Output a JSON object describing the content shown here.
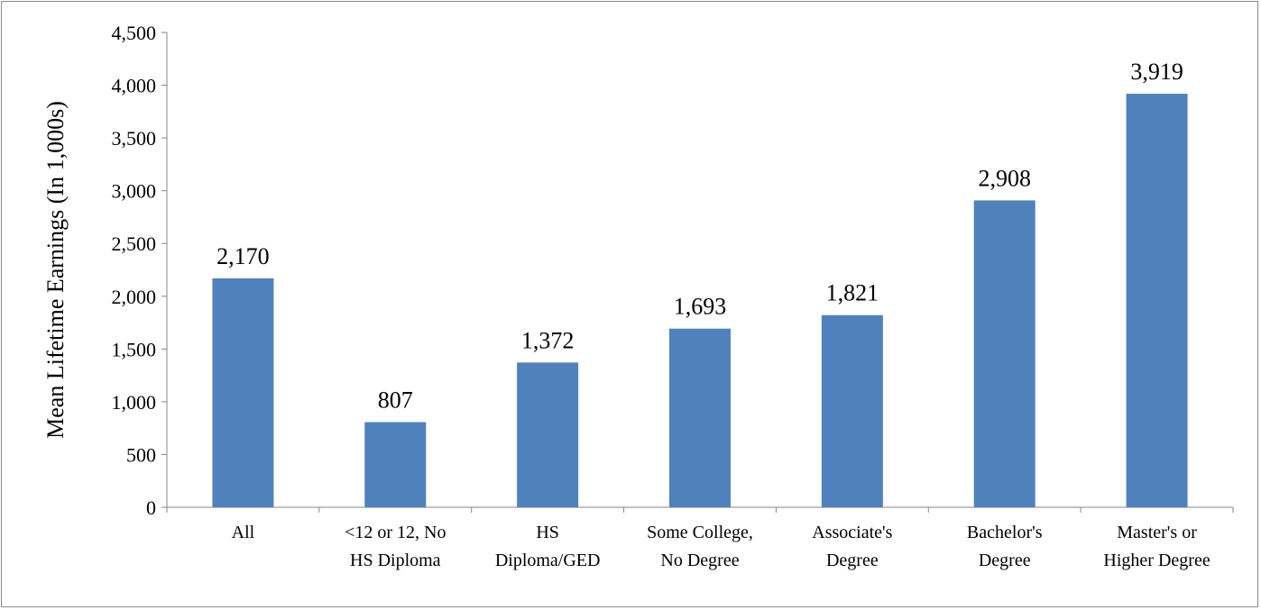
{
  "chart_data": {
    "type": "bar",
    "title": "",
    "xlabel": "",
    "ylabel": "Mean Lifetime Earnings (In 1,000s)",
    "ylim": [
      0,
      4500
    ],
    "yticks": [
      0,
      500,
      1000,
      1500,
      2000,
      2500,
      3000,
      3500,
      4000,
      4500
    ],
    "ytick_labels": [
      "0",
      "500",
      "1,000",
      "1,500",
      "2,000",
      "2,500",
      "3,000",
      "3,500",
      "4,000",
      "4,500"
    ],
    "grid": false,
    "legend": "none",
    "bar_color": "#4F81BD",
    "categories": [
      [
        "All"
      ],
      [
        "<12 or 12, No",
        "HS Diploma"
      ],
      [
        "HS",
        "Diploma/GED"
      ],
      [
        "Some College,",
        "No Degree"
      ],
      [
        "Associate's",
        "Degree"
      ],
      [
        "Bachelor's",
        "Degree"
      ],
      [
        "Master's or",
        "Higher Degree"
      ]
    ],
    "values": [
      2170,
      807,
      1372,
      1693,
      1821,
      2908,
      3919
    ],
    "value_labels": [
      "2,170",
      "807",
      "1,372",
      "1,693",
      "1,821",
      "2,908",
      "3,919"
    ]
  }
}
